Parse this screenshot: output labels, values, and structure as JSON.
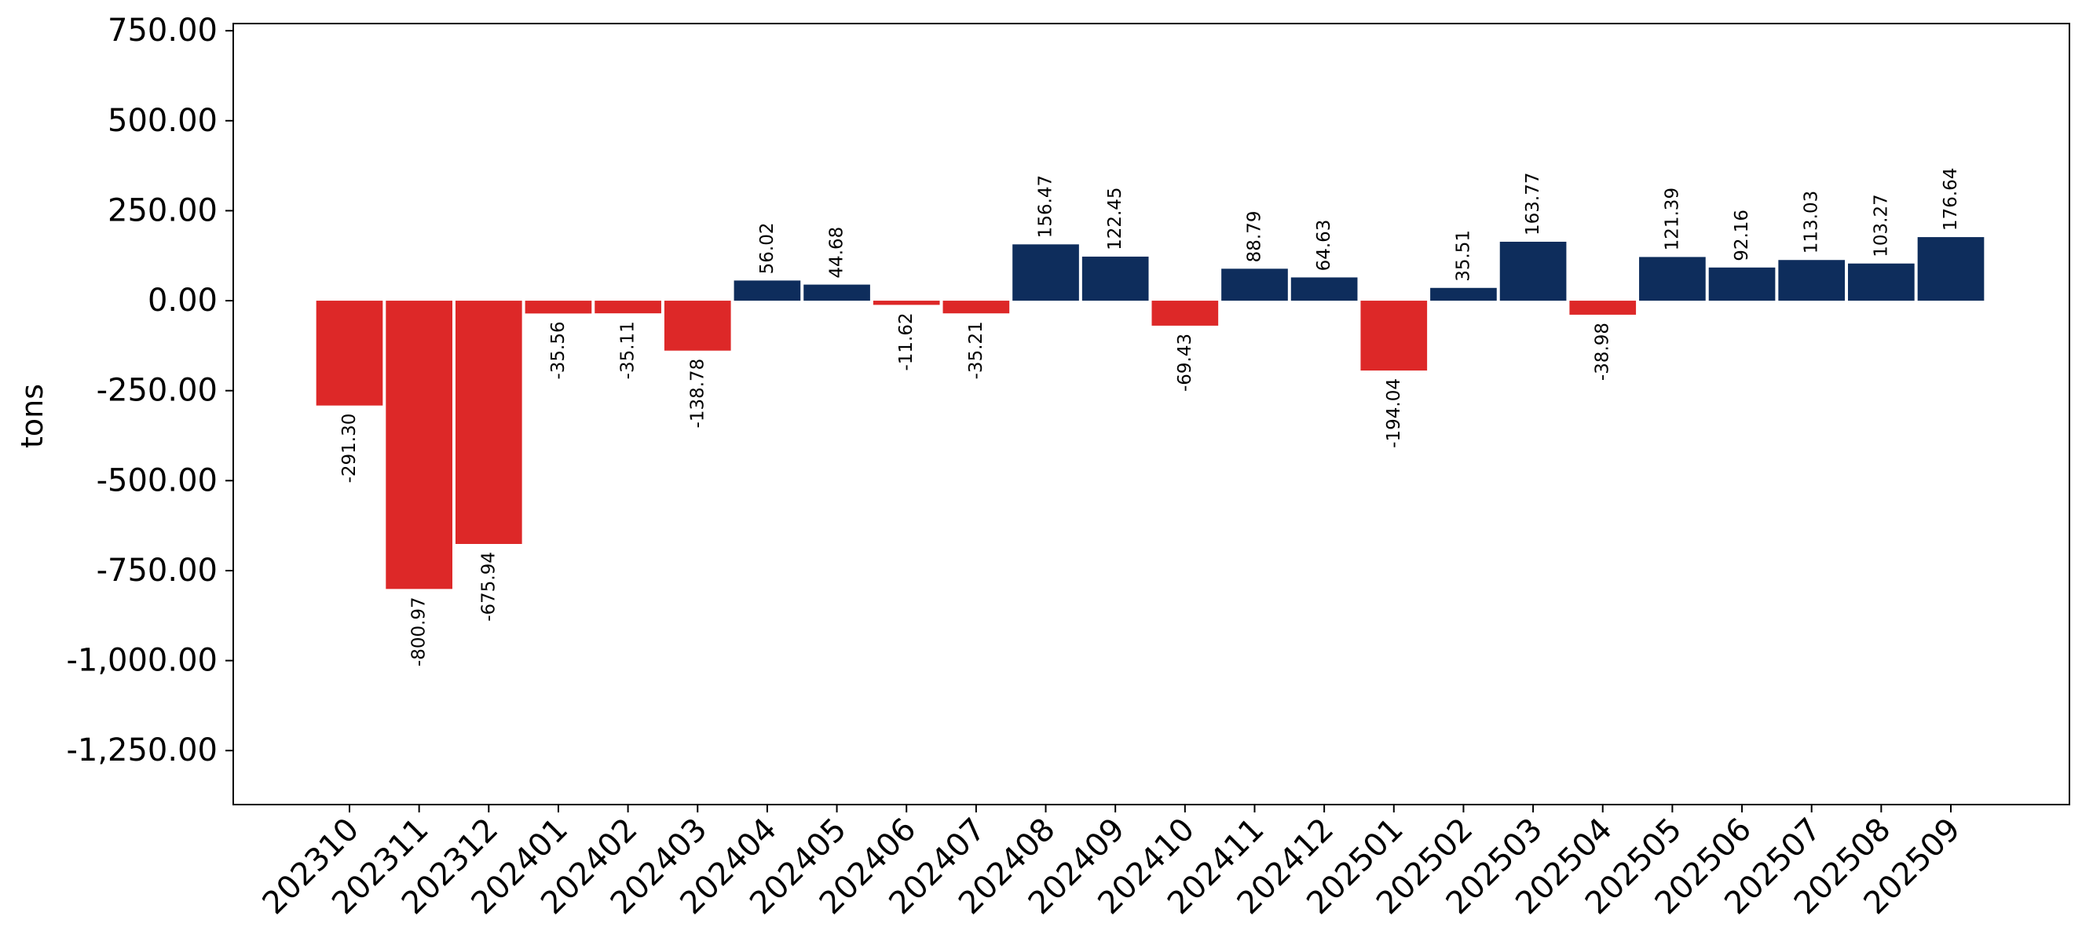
{
  "colors": {
    "positive": "#0e2d5c",
    "negative": "#dd2828",
    "axis": "#000000"
  },
  "chart_data": {
    "type": "bar",
    "ylabel": "tons",
    "xlabel": "",
    "title": "",
    "ylim": [
      -1400,
      770
    ],
    "yticks": [
      750,
      500,
      250,
      0,
      -250,
      -500,
      -750,
      -1000,
      -1250
    ],
    "ytick_labels": [
      "750.00",
      "500.00",
      "250.00",
      "0.00",
      "-250.00",
      "-500.00",
      "-750.00",
      "-1,000.00",
      "-1,250.00"
    ],
    "categories": [
      "202310",
      "202311",
      "202312",
      "202401",
      "202402",
      "202403",
      "202404",
      "202405",
      "202406",
      "202407",
      "202408",
      "202409",
      "202410",
      "202411",
      "202412",
      "202501",
      "202502",
      "202503",
      "202504",
      "202505",
      "202506",
      "202507",
      "202508",
      "202509"
    ],
    "values": [
      -291.3,
      -800.97,
      -675.94,
      -35.56,
      -35.11,
      -138.78,
      56.02,
      44.68,
      -11.62,
      -35.21,
      156.47,
      122.45,
      -69.43,
      88.79,
      64.63,
      -194.04,
      35.51,
      163.77,
      -38.98,
      121.39,
      92.16,
      113.03,
      103.27,
      176.64
    ],
    "value_labels": [
      "-291.30",
      "-800.97",
      "-675.94",
      "-35.56",
      "-35.11",
      "-138.78",
      "56.02",
      "44.68",
      "-11.62",
      "-35.21",
      "156.47",
      "122.45",
      "-69.43",
      "88.79",
      "64.63",
      "-194.04",
      "35.51",
      "163.77",
      "-38.98",
      "121.39",
      "92.16",
      "113.03",
      "103.27",
      "176.64"
    ],
    "grid": false,
    "legend": "none"
  }
}
